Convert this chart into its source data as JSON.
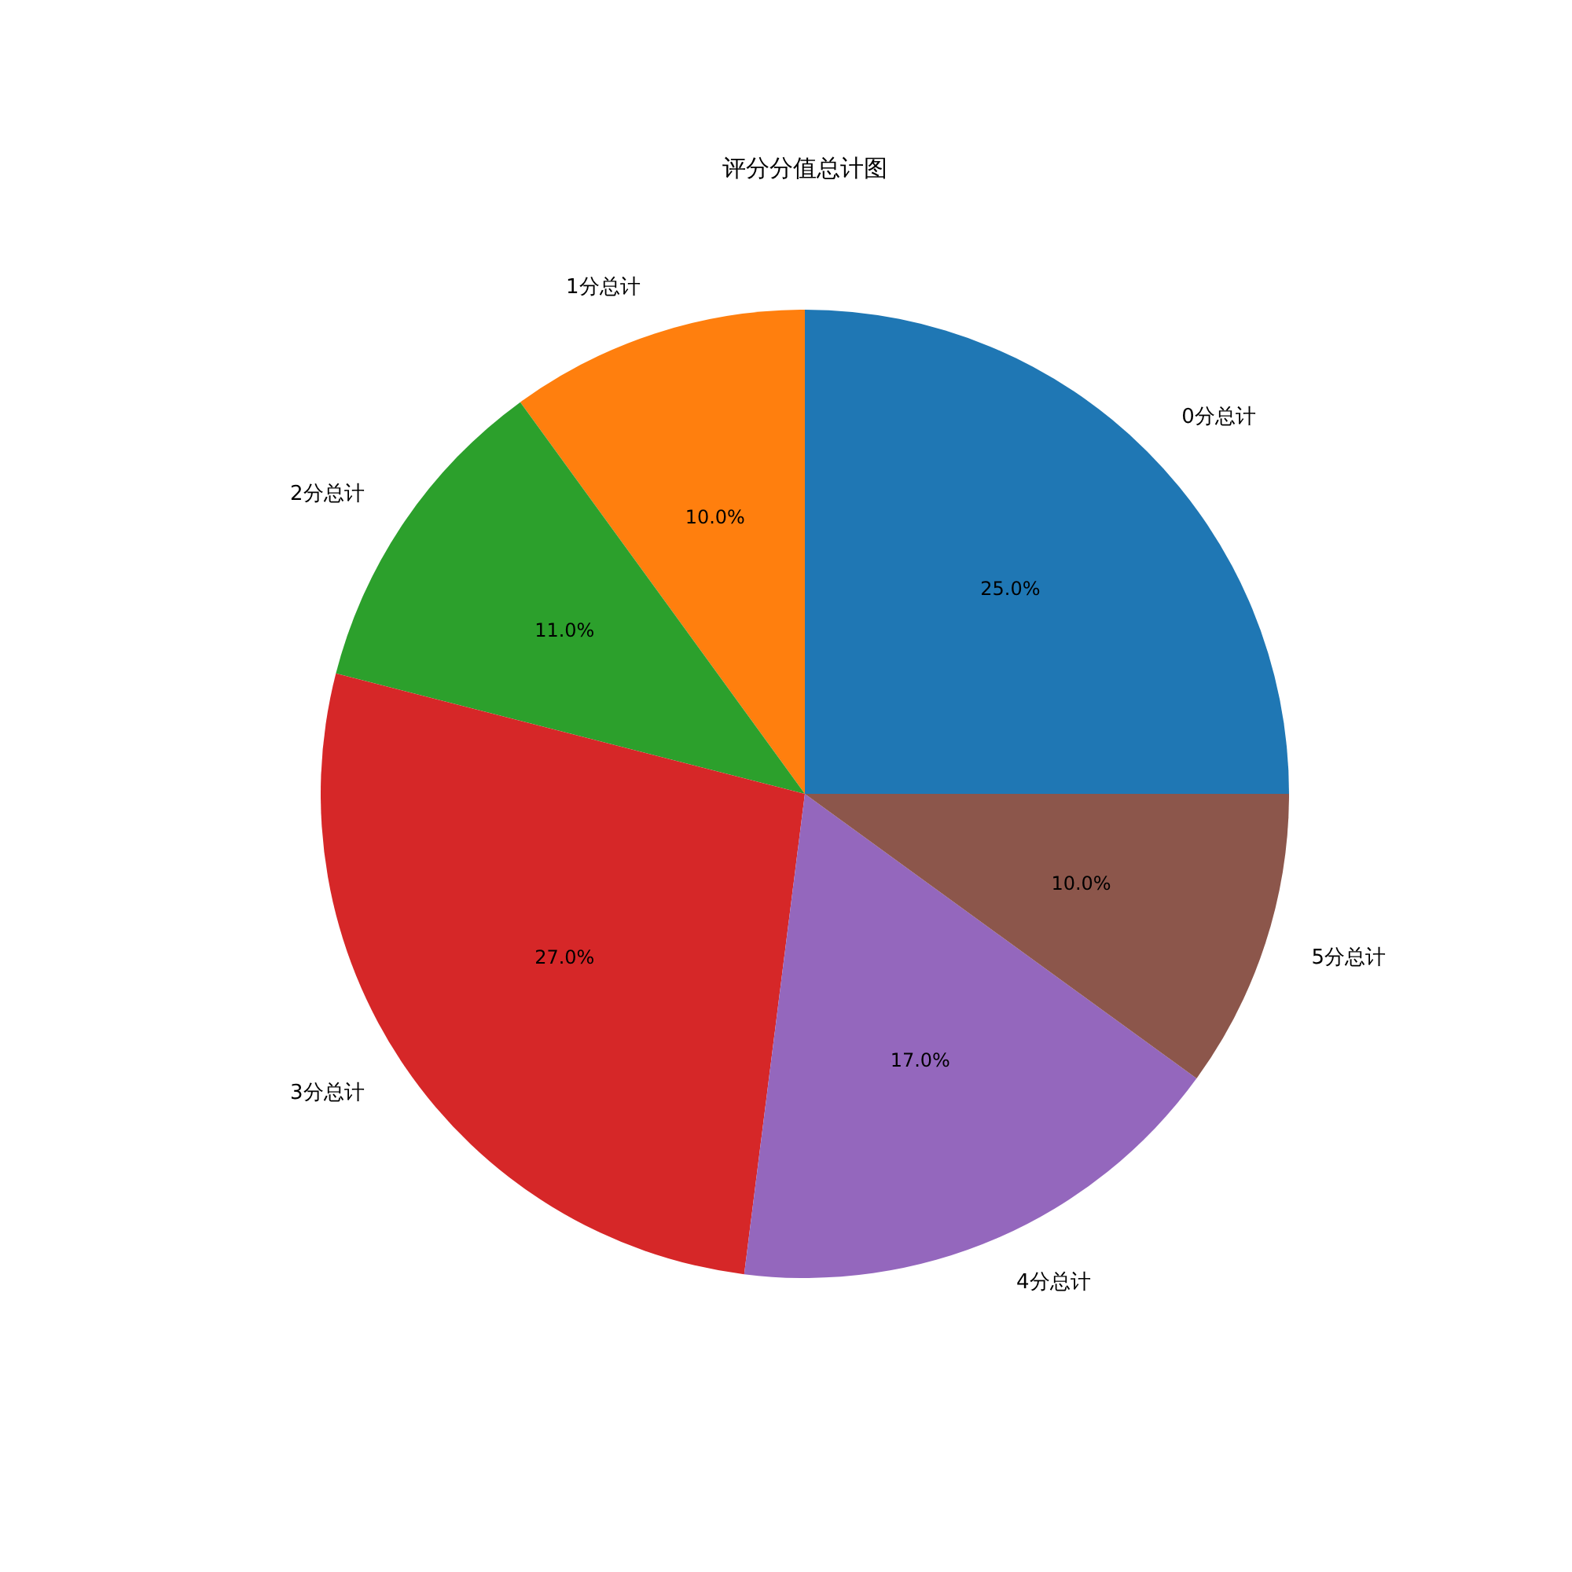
{
  "chart_data": {
    "type": "pie",
    "title": "评分分值总计图",
    "categories": [
      "0分总计",
      "1分总计",
      "2分总计",
      "3分总计",
      "4分总计",
      "5分总计"
    ],
    "values": [
      25,
      10,
      11,
      27,
      17,
      10
    ],
    "colors": [
      "#1f77b4",
      "#ff7f0e",
      "#2ca02c",
      "#d62728",
      "#9467bd",
      "#8c564b"
    ],
    "value_labels": [
      "25.0%",
      "10.0%",
      "11.0%",
      "27.0%",
      "17.0%",
      "10.0%"
    ],
    "legend": false
  }
}
